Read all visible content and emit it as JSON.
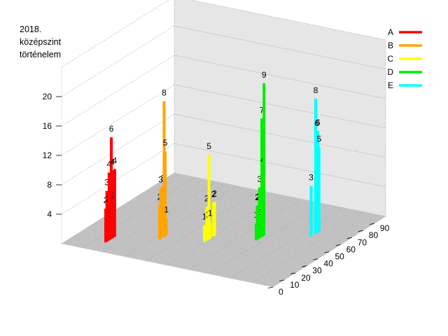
{
  "chart_data": {
    "type": "bar",
    "title_lines": [
      "2018.",
      "középszint",
      "történelem"
    ],
    "z_ticks": [
      "4",
      "8",
      "12",
      "16",
      "20"
    ],
    "x_ticks": [
      "0",
      "10",
      "20",
      "30",
      "40",
      "50",
      "60",
      "70",
      "80",
      "90"
    ],
    "xlim": [
      0,
      100
    ],
    "zlim": [
      0,
      20
    ],
    "legend_position": "top-right",
    "series": [
      {
        "name": "A",
        "color": "#ff0000",
        "points": [
          {
            "x": 11,
            "v": 2
          },
          {
            "x": 12,
            "v": 3
          },
          {
            "x": 13,
            "v": 2
          },
          {
            "x": 14,
            "v": 4
          },
          {
            "x": 15,
            "v": 1
          },
          {
            "x": 16,
            "v": 6
          },
          {
            "x": 17,
            "v": 4
          },
          {
            "x": 18,
            "v": 2
          },
          {
            "x": 19,
            "v": 4
          }
        ]
      },
      {
        "name": "B",
        "color": "#ffa500",
        "points": [
          {
            "x": 26,
            "v": 2
          },
          {
            "x": 27,
            "v": 3
          },
          {
            "x": 29,
            "v": 3
          },
          {
            "x": 30,
            "v": 8
          },
          {
            "x": 31,
            "v": 5
          },
          {
            "x": 32,
            "v": 1
          }
        ]
      },
      {
        "name": "C",
        "color": "#ffff00",
        "points": [
          {
            "x": 33,
            "v": 1
          },
          {
            "x": 35,
            "v": 2
          },
          {
            "x": 36,
            "v": 1
          },
          {
            "x": 37,
            "v": 5
          },
          {
            "x": 38,
            "v": 1
          },
          {
            "x": 41,
            "v": 2
          },
          {
            "x": 42,
            "v": 2
          }
        ]
      },
      {
        "name": "D",
        "color": "#00ee00",
        "points": [
          {
            "x": 46,
            "v": 1
          },
          {
            "x": 47,
            "v": 2
          },
          {
            "x": 48,
            "v": 2
          },
          {
            "x": 49,
            "v": 3
          },
          {
            "x": 50,
            "v": 1
          },
          {
            "x": 51,
            "v": 7
          },
          {
            "x": 52,
            "v": 4
          },
          {
            "x": 53,
            "v": 9
          }
        ]
      },
      {
        "name": "E",
        "color": "#00ffff",
        "points": [
          {
            "x": 62,
            "v": 3
          },
          {
            "x": 66,
            "v": 8
          },
          {
            "x": 67,
            "v": 6
          },
          {
            "x": 68,
            "v": 6
          },
          {
            "x": 69,
            "v": 5
          }
        ]
      }
    ]
  }
}
